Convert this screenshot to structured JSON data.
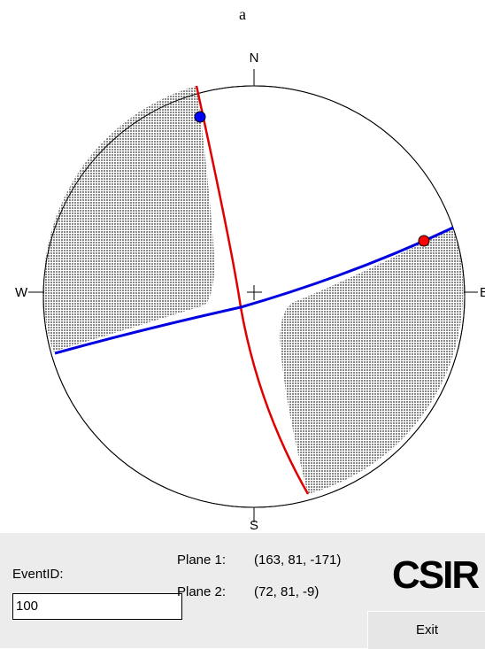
{
  "title": "a",
  "stereonet": {
    "north": "N",
    "south": "S",
    "east": "E",
    "west": "W"
  },
  "event": {
    "label": "EventID:",
    "value": "100"
  },
  "planes": [
    {
      "label": "Plane 1:",
      "value": "(163, 81, -171)"
    },
    {
      "label": "Plane 2:",
      "value": "(72, 81, -9)"
    }
  ],
  "logo": "CSIR",
  "button": "Exit"
}
